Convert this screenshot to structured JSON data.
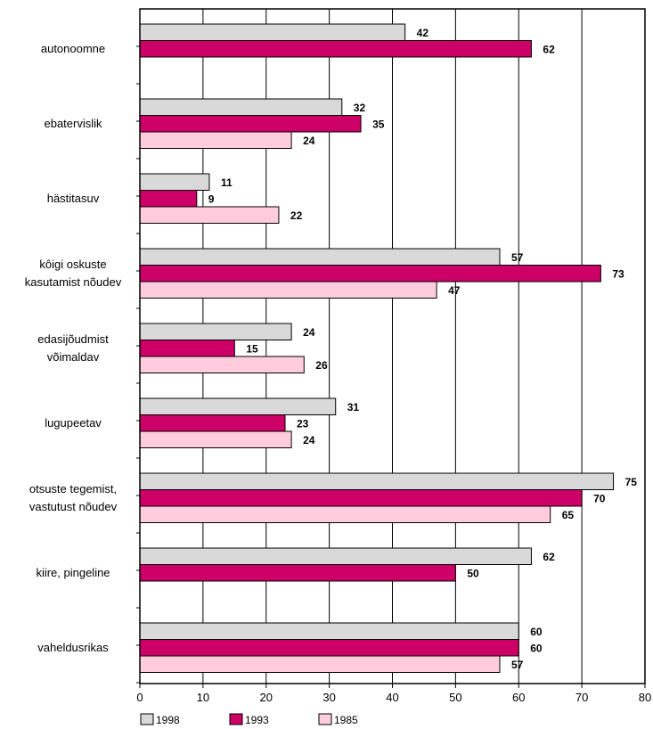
{
  "chart_data": {
    "type": "bar",
    "orientation": "horizontal",
    "categories": [
      "autonoomne",
      "ebatervislik",
      "hästitasuv",
      "kôigi oskuste kasutamist nõudev",
      "edasijõudmist võimaldav",
      "lugupeetav",
      "otsuste tegemist, vastutust nõudev",
      "kiire, pingeline",
      "vaheldusrikas"
    ],
    "category_lines": [
      [
        "autonoomne"
      ],
      [
        "ebatervislik"
      ],
      [
        "hästitasuv"
      ],
      [
        "kôigi oskuste",
        "kasutamist nõudev"
      ],
      [
        "edasijõudmist",
        "võimaldav"
      ],
      [
        "lugupeetav"
      ],
      [
        "otsuste tegemist,",
        "vastutust nõudev"
      ],
      [
        "kiire, pingeline"
      ],
      [
        "vaheldusrikas"
      ]
    ],
    "series": [
      {
        "name": "1998",
        "color": "#d9d9d9",
        "values": [
          42,
          32,
          11,
          57,
          24,
          31,
          75,
          62,
          60
        ]
      },
      {
        "name": "1993",
        "color": "#cc0066",
        "values": [
          62,
          35,
          9,
          73,
          15,
          23,
          70,
          50,
          60
        ]
      },
      {
        "name": "1985",
        "color": "#ffccdd",
        "values": [
          null,
          24,
          22,
          47,
          26,
          24,
          65,
          null,
          57
        ]
      }
    ],
    "xlim": [
      0,
      80
    ],
    "xticks": [
      "0",
      "10",
      "20",
      "30",
      "40",
      "50",
      "60",
      "70",
      "80"
    ],
    "grid": "vertical",
    "legend_position": "bottom-left"
  }
}
